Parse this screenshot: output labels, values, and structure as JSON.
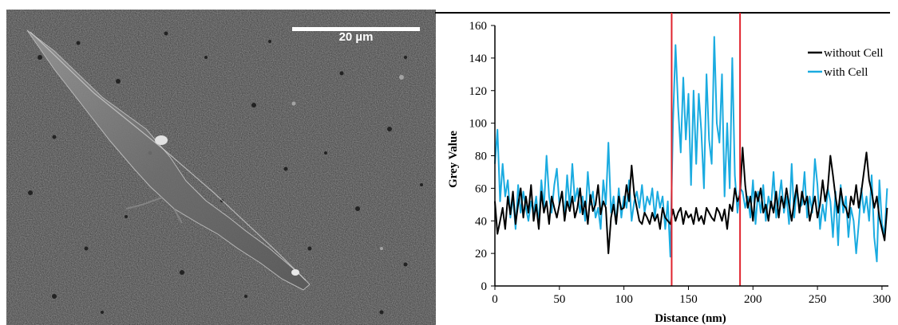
{
  "image": {
    "scale_bar_label": "20 µm"
  },
  "chart_data": {
    "type": "line",
    "title": "",
    "xlabel": "Distance (nm)",
    "ylabel": "Grey Value",
    "xlim": [
      0,
      305
    ],
    "ylim": [
      0,
      160
    ],
    "x_ticks": [
      0,
      50,
      100,
      150,
      200,
      250,
      300
    ],
    "y_ticks": [
      0,
      20,
      40,
      60,
      80,
      100,
      120,
      140,
      160
    ],
    "grid": false,
    "legend_position": "top-right",
    "vertical_markers": [
      {
        "x": 137,
        "color": "#e0242e"
      },
      {
        "x": 190,
        "color": "#e0242e"
      }
    ],
    "series": [
      {
        "name": "without Cell",
        "color": "#000000",
        "x": [
          0,
          2,
          4,
          6,
          8,
          10,
          12,
          14,
          16,
          18,
          20,
          22,
          24,
          26,
          28,
          30,
          32,
          34,
          36,
          38,
          40,
          42,
          44,
          46,
          48,
          50,
          52,
          54,
          56,
          58,
          60,
          62,
          64,
          66,
          68,
          70,
          72,
          74,
          76,
          78,
          80,
          82,
          84,
          86,
          88,
          90,
          92,
          94,
          96,
          98,
          100,
          102,
          104,
          106,
          108,
          110,
          112,
          114,
          116,
          118,
          120,
          122,
          124,
          126,
          128,
          130,
          132,
          134,
          136,
          138,
          140,
          142,
          144,
          146,
          148,
          150,
          152,
          154,
          156,
          158,
          160,
          162,
          164,
          166,
          168,
          170,
          172,
          174,
          176,
          178,
          180,
          182,
          184,
          186,
          188,
          190,
          192,
          194,
          196,
          198,
          200,
          202,
          204,
          206,
          208,
          210,
          212,
          214,
          216,
          218,
          220,
          222,
          224,
          226,
          228,
          230,
          232,
          234,
          236,
          238,
          240,
          242,
          244,
          246,
          248,
          250,
          252,
          254,
          256,
          258,
          260,
          262,
          264,
          266,
          268,
          270,
          272,
          274,
          276,
          278,
          280,
          282,
          284,
          286,
          288,
          290,
          292,
          294,
          296,
          298,
          300,
          302,
          304
        ],
        "values": [
          52,
          32,
          40,
          48,
          35,
          55,
          44,
          58,
          38,
          50,
          60,
          42,
          55,
          45,
          62,
          40,
          50,
          35,
          58,
          45,
          52,
          38,
          55,
          48,
          42,
          50,
          58,
          40,
          52,
          46,
          55,
          42,
          48,
          60,
          44,
          52,
          38,
          56,
          46,
          50,
          62,
          44,
          52,
          48,
          20,
          42,
          50,
          38,
          55,
          47,
          48,
          62,
          52,
          74,
          56,
          48,
          40,
          38,
          45,
          42,
          38,
          45,
          40,
          44,
          35,
          48,
          42,
          40,
          38,
          47,
          40,
          45,
          48,
          38,
          46,
          42,
          44,
          38,
          48,
          40,
          43,
          38,
          48,
          45,
          42,
          40,
          48,
          45,
          40,
          47,
          35,
          50,
          46,
          60,
          52,
          56,
          85,
          62,
          48,
          55,
          40,
          58,
          52,
          60,
          45,
          50,
          40,
          52,
          45,
          58,
          42,
          55,
          48,
          60,
          50,
          40,
          52,
          62,
          45,
          58,
          50,
          55,
          40,
          48,
          55,
          42,
          50,
          65,
          52,
          60,
          80,
          68,
          55,
          45,
          60,
          50,
          48,
          42,
          55,
          50,
          62,
          48,
          58,
          70,
          82,
          65,
          58,
          48,
          55,
          42,
          35,
          28,
          48
        ]
      },
      {
        "name": "with Cell",
        "color": "#1aabe0",
        "x": [
          0,
          2,
          4,
          6,
          8,
          10,
          12,
          14,
          16,
          18,
          20,
          22,
          24,
          26,
          28,
          30,
          32,
          34,
          36,
          38,
          40,
          42,
          44,
          46,
          48,
          50,
          52,
          54,
          56,
          58,
          60,
          62,
          64,
          66,
          68,
          70,
          72,
          74,
          76,
          78,
          80,
          82,
          84,
          86,
          88,
          90,
          92,
          94,
          96,
          98,
          100,
          102,
          104,
          106,
          108,
          110,
          112,
          114,
          116,
          118,
          120,
          122,
          124,
          126,
          128,
          130,
          132,
          134,
          136,
          138,
          140,
          142,
          144,
          146,
          148,
          150,
          152,
          154,
          156,
          158,
          160,
          162,
          164,
          166,
          168,
          170,
          172,
          174,
          176,
          178,
          180,
          182,
          184,
          186,
          188,
          190,
          192,
          194,
          196,
          198,
          200,
          202,
          204,
          206,
          208,
          210,
          212,
          214,
          216,
          218,
          220,
          222,
          224,
          226,
          228,
          230,
          232,
          234,
          236,
          238,
          240,
          242,
          244,
          246,
          248,
          250,
          252,
          254,
          256,
          258,
          260,
          262,
          264,
          266,
          268,
          270,
          272,
          274,
          276,
          278,
          280,
          282,
          284,
          286,
          288,
          290,
          292,
          294,
          296,
          298,
          300,
          302,
          304
        ],
        "values": [
          75,
          96,
          52,
          75,
          55,
          65,
          42,
          55,
          35,
          62,
          45,
          58,
          48,
          40,
          52,
          45,
          55,
          38,
          65,
          48,
          80,
          55,
          45,
          62,
          72,
          50,
          58,
          42,
          68,
          48,
          75,
          52,
          60,
          45,
          55,
          40,
          70,
          50,
          58,
          42,
          48,
          35,
          65,
          50,
          88,
          45,
          55,
          38,
          60,
          42,
          55,
          48,
          65,
          40,
          52,
          58,
          48,
          62,
          45,
          55,
          50,
          60,
          42,
          58,
          48,
          55,
          35,
          52,
          18,
          100,
          148,
          110,
          82,
          128,
          90,
          118,
          62,
          120,
          75,
          118,
          95,
          60,
          130,
          90,
          75,
          153,
          100,
          88,
          130,
          55,
          100,
          60,
          140,
          68,
          45,
          60,
          58,
          48,
          55,
          42,
          65,
          38,
          58,
          45,
          62,
          40,
          55,
          48,
          70,
          42,
          52,
          65,
          45,
          55,
          38,
          75,
          42,
          60,
          48,
          50,
          70,
          42,
          55,
          45,
          78,
          62,
          35,
          50,
          40,
          60,
          52,
          30,
          58,
          25,
          62,
          45,
          55,
          30,
          48,
          40,
          20,
          38,
          60,
          45,
          55,
          40,
          68,
          30,
          15,
          65,
          38,
          32,
          60
        ]
      }
    ]
  }
}
